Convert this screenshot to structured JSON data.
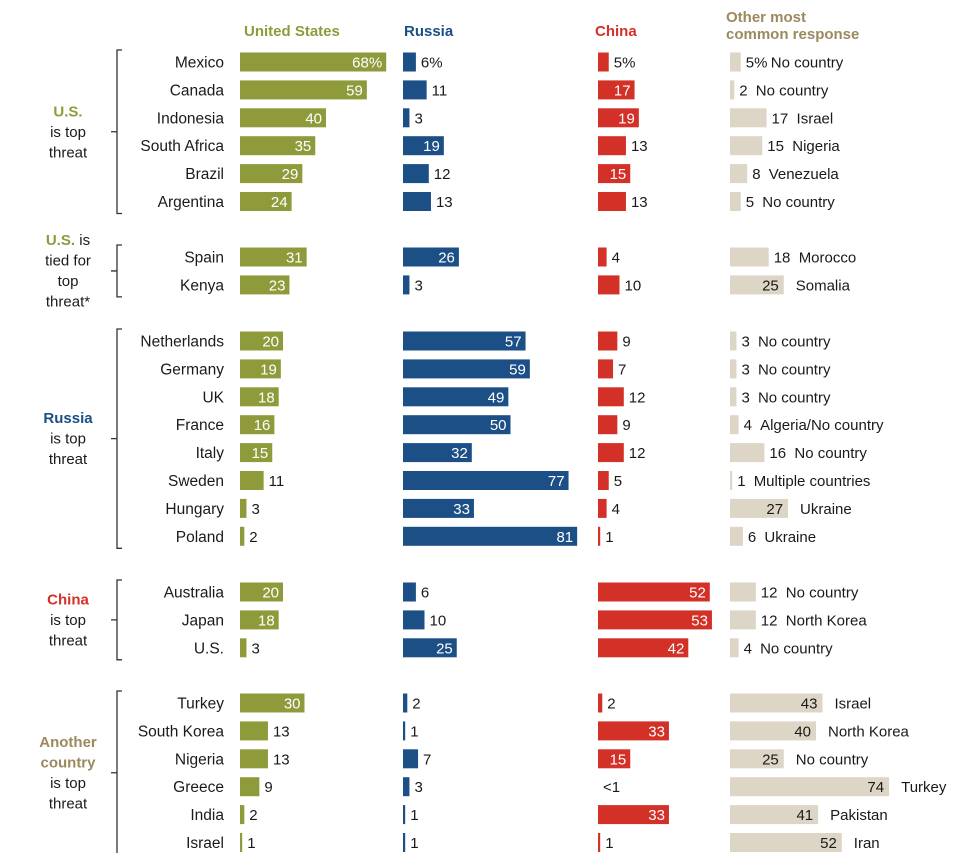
{
  "chart_data": {
    "type": "bar",
    "columns": [
      {
        "name": "United States",
        "color": "#8f9b3b"
      },
      {
        "name": "Russia",
        "color": "#1b4f85"
      },
      {
        "name": "China",
        "color": "#d33127"
      },
      {
        "name": "Other most common response",
        "color": "#ddd6c6"
      }
    ],
    "groups": [
      {
        "label_parts": [
          {
            "text": "U.S.",
            "color": "#8f9b3b",
            "bold": true
          },
          {
            "text": " is top threat",
            "color": "#1a1a1a",
            "bold": false
          }
        ],
        "label_lines": [
          [
            {
              "text": "U.S.",
              "bold": true,
              "color": "#8f9b3b"
            }
          ],
          [
            {
              "text": "is top",
              "bold": false,
              "color": "#1a1a1a"
            }
          ],
          [
            {
              "text": "threat",
              "bold": false,
              "color": "#1a1a1a"
            }
          ]
        ],
        "rows": [
          {
            "country": "Mexico",
            "us": 68,
            "us_label": "68%",
            "russia": 6,
            "russia_label": "6%",
            "china": 5,
            "china_label": "5%",
            "other": 5,
            "other_label": "5%",
            "other_name": "No country"
          },
          {
            "country": "Canada",
            "us": 59,
            "us_label": "59",
            "russia": 11,
            "russia_label": "11",
            "china": 17,
            "china_label": "17",
            "other": 2,
            "other_label": "2",
            "other_name": "No country"
          },
          {
            "country": "Indonesia",
            "us": 40,
            "us_label": "40",
            "russia": 3,
            "russia_label": "3",
            "china": 19,
            "china_label": "19",
            "other": 17,
            "other_label": "17",
            "other_name": "Israel"
          },
          {
            "country": "South Africa",
            "us": 35,
            "us_label": "35",
            "russia": 19,
            "russia_label": "19",
            "china": 13,
            "china_label": "13",
            "other": 15,
            "other_label": "15",
            "other_name": "Nigeria"
          },
          {
            "country": "Brazil",
            "us": 29,
            "us_label": "29",
            "russia": 12,
            "russia_label": "12",
            "china": 15,
            "china_label": "15",
            "other": 8,
            "other_label": "8",
            "other_name": "Venezuela"
          },
          {
            "country": "Argentina",
            "us": 24,
            "us_label": "24",
            "russia": 13,
            "russia_label": "13",
            "china": 13,
            "china_label": "13",
            "other": 5,
            "other_label": "5",
            "other_name": "No country"
          }
        ]
      },
      {
        "label_lines": [
          [
            {
              "text": "U.S.",
              "bold": true,
              "color": "#8f9b3b"
            },
            {
              "text": " is",
              "bold": false,
              "color": "#1a1a1a"
            }
          ],
          [
            {
              "text": "tied for",
              "bold": false,
              "color": "#1a1a1a"
            }
          ],
          [
            {
              "text": "top",
              "bold": false,
              "color": "#1a1a1a"
            }
          ],
          [
            {
              "text": "threat*",
              "bold": false,
              "color": "#1a1a1a"
            }
          ]
        ],
        "rows": [
          {
            "country": "Spain",
            "us": 31,
            "us_label": "31",
            "russia": 26,
            "russia_label": "26",
            "china": 4,
            "china_label": "4",
            "other": 18,
            "other_label": "18",
            "other_name": "Morocco"
          },
          {
            "country": "Kenya",
            "us": 23,
            "us_label": "23",
            "russia": 3,
            "russia_label": "3",
            "china": 10,
            "china_label": "10",
            "other": 25,
            "other_label": "25",
            "other_name": "Somalia"
          }
        ]
      },
      {
        "label_lines": [
          [
            {
              "text": "Russia",
              "bold": true,
              "color": "#1b4f85"
            }
          ],
          [
            {
              "text": "is top",
              "bold": false,
              "color": "#1a1a1a"
            }
          ],
          [
            {
              "text": "threat",
              "bold": false,
              "color": "#1a1a1a"
            }
          ]
        ],
        "rows": [
          {
            "country": "Netherlands",
            "us": 20,
            "us_label": "20",
            "russia": 57,
            "russia_label": "57",
            "china": 9,
            "china_label": "9",
            "other": 3,
            "other_label": "3",
            "other_name": "No country"
          },
          {
            "country": "Germany",
            "us": 19,
            "us_label": "19",
            "russia": 59,
            "russia_label": "59",
            "china": 7,
            "china_label": "7",
            "other": 3,
            "other_label": "3",
            "other_name": "No country"
          },
          {
            "country": "UK",
            "us": 18,
            "us_label": "18",
            "russia": 49,
            "russia_label": "49",
            "china": 12,
            "china_label": "12",
            "other": 3,
            "other_label": "3",
            "other_name": "No country"
          },
          {
            "country": "France",
            "us": 16,
            "us_label": "16",
            "russia": 50,
            "russia_label": "50",
            "china": 9,
            "china_label": "9",
            "other": 4,
            "other_label": "4",
            "other_name": "Algeria/No country"
          },
          {
            "country": "Italy",
            "us": 15,
            "us_label": "15",
            "russia": 32,
            "russia_label": "32",
            "china": 12,
            "china_label": "12",
            "other": 16,
            "other_label": "16",
            "other_name": "No country"
          },
          {
            "country": "Sweden",
            "us": 11,
            "us_label": "11",
            "russia": 77,
            "russia_label": "77",
            "china": 5,
            "china_label": "5",
            "other": 1,
            "other_label": "1",
            "other_name": "Multiple countries"
          },
          {
            "country": "Hungary",
            "us": 3,
            "us_label": "3",
            "russia": 33,
            "russia_label": "33",
            "china": 4,
            "china_label": "4",
            "other": 27,
            "other_label": "27",
            "other_name": "Ukraine"
          },
          {
            "country": "Poland",
            "us": 2,
            "us_label": "2",
            "russia": 81,
            "russia_label": "81",
            "china": 1,
            "china_label": "1",
            "other": 6,
            "other_label": "6",
            "other_name": "Ukraine"
          }
        ]
      },
      {
        "label_lines": [
          [
            {
              "text": "China",
              "bold": true,
              "color": "#d33127"
            }
          ],
          [
            {
              "text": "is top",
              "bold": false,
              "color": "#1a1a1a"
            }
          ],
          [
            {
              "text": "threat",
              "bold": false,
              "color": "#1a1a1a"
            }
          ]
        ],
        "rows": [
          {
            "country": "Australia",
            "us": 20,
            "us_label": "20",
            "russia": 6,
            "russia_label": "6",
            "china": 52,
            "china_label": "52",
            "other": 12,
            "other_label": "12",
            "other_name": "No country"
          },
          {
            "country": "Japan",
            "us": 18,
            "us_label": "18",
            "russia": 10,
            "russia_label": "10",
            "china": 53,
            "china_label": "53",
            "other": 12,
            "other_label": "12",
            "other_name": "North Korea"
          },
          {
            "country": "U.S.",
            "us": 3,
            "us_label": "3",
            "russia": 25,
            "russia_label": "25",
            "china": 42,
            "china_label": "42",
            "other": 4,
            "other_label": "4",
            "other_name": "No country"
          }
        ]
      },
      {
        "label_lines": [
          [
            {
              "text": "Another",
              "bold": true,
              "color": "#9c8a5e"
            }
          ],
          [
            {
              "text": "country",
              "bold": true,
              "color": "#9c8a5e"
            }
          ],
          [
            {
              "text": "is top",
              "bold": false,
              "color": "#1a1a1a"
            }
          ],
          [
            {
              "text": "threat",
              "bold": false,
              "color": "#1a1a1a"
            }
          ]
        ],
        "rows": [
          {
            "country": "Turkey",
            "us": 30,
            "us_label": "30",
            "russia": 2,
            "russia_label": "2",
            "china": 2,
            "china_label": "2",
            "other": 43,
            "other_label": "43",
            "other_name": "Israel"
          },
          {
            "country": "South Korea",
            "us": 13,
            "us_label": "13",
            "russia": 1,
            "russia_label": "1",
            "china": 33,
            "china_label": "33",
            "other": 40,
            "other_label": "40",
            "other_name": "North Korea"
          },
          {
            "country": "Nigeria",
            "us": 13,
            "us_label": "13",
            "russia": 7,
            "russia_label": "7",
            "china": 15,
            "china_label": "15",
            "other": 25,
            "other_label": "25",
            "other_name": "No country"
          },
          {
            "country": "Greece",
            "us": 9,
            "us_label": "9",
            "russia": 3,
            "russia_label": "3",
            "china": 0,
            "china_label": "<1",
            "other": 74,
            "other_label": "74",
            "other_name": "Turkey"
          },
          {
            "country": "India",
            "us": 2,
            "us_label": "2",
            "russia": 1,
            "russia_label": "1",
            "china": 33,
            "china_label": "33",
            "other": 41,
            "other_label": "41",
            "other_name": "Pakistan"
          },
          {
            "country": "Israel",
            "us": 1,
            "us_label": "1",
            "russia": 1,
            "russia_label": "1",
            "china": 1,
            "china_label": "1",
            "other": 52,
            "other_label": "52",
            "other_name": "Iran"
          }
        ]
      }
    ]
  },
  "header_lines": {
    "us": "United States",
    "russia": "Russia",
    "china": "China",
    "other_line1": "Other most",
    "other_line2": "common response"
  },
  "header_colors": {
    "us": "#8f9b3b",
    "russia": "#1b4f85",
    "china": "#d33127",
    "other": "#9c8a5e"
  }
}
